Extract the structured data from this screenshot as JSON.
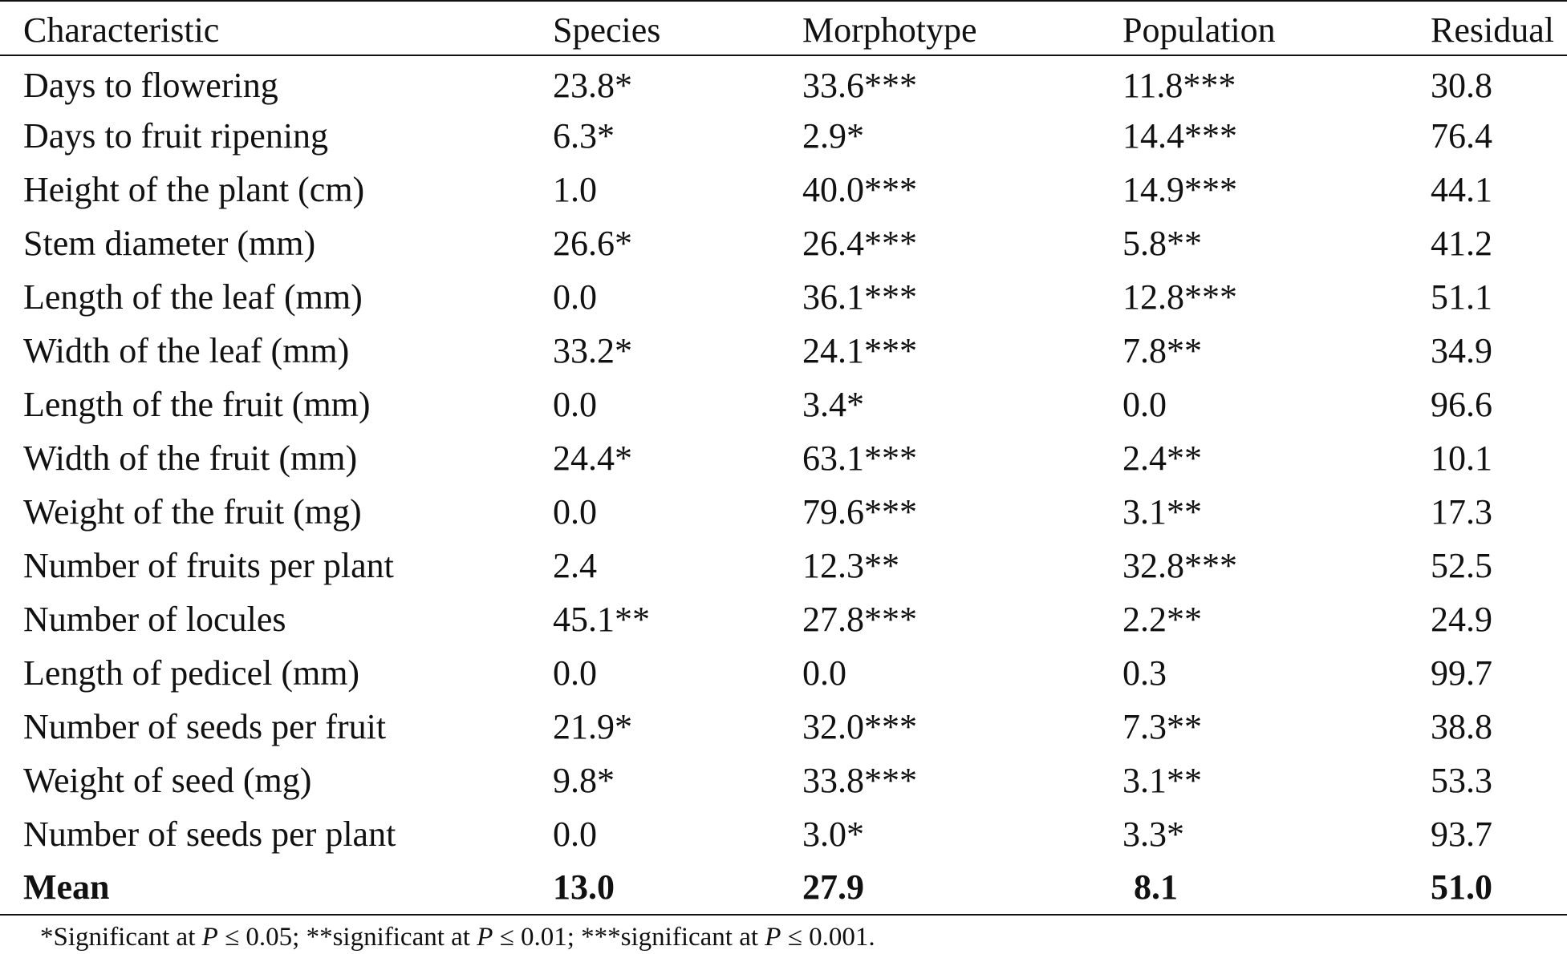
{
  "table": {
    "headers": [
      "Characteristic",
      "Species",
      "Morphotype",
      "Population",
      "Residual"
    ],
    "rows": [
      [
        "Days to flowering",
        "23.8*",
        "33.6***",
        "11.8***",
        "30.8"
      ],
      [
        "Days to fruit ripening",
        "6.3*",
        "2.9*",
        "14.4***",
        "76.4"
      ],
      [
        "Height of the plant (cm)",
        "1.0",
        "40.0***",
        "14.9***",
        "44.1"
      ],
      [
        "Stem diameter (mm)",
        "26.6*",
        "26.4***",
        "5.8**",
        "41.2"
      ],
      [
        "Length of the leaf (mm)",
        "0.0",
        "36.1***",
        "12.8***",
        "51.1"
      ],
      [
        "Width of the leaf (mm)",
        "33.2*",
        "24.1***",
        "7.8**",
        "34.9"
      ],
      [
        "Length of the fruit (mm)",
        "0.0",
        "3.4*",
        "0.0",
        "96.6"
      ],
      [
        "Width of the fruit (mm)",
        "24.4*",
        "63.1***",
        "2.4**",
        "10.1"
      ],
      [
        "Weight of the fruit (mg)",
        "0.0",
        "79.6***",
        "3.1**",
        "17.3"
      ],
      [
        "Number of fruits per plant",
        "2.4",
        "12.3**",
        "32.8***",
        "52.5"
      ],
      [
        "Number of locules",
        "45.1**",
        "27.8***",
        "2.2**",
        "24.9"
      ],
      [
        "Length of pedicel (mm)",
        "0.0",
        "0.0",
        "0.3",
        "99.7"
      ],
      [
        "Number of seeds per fruit",
        "21.9*",
        "32.0***",
        "7.3**",
        "38.8"
      ],
      [
        "Weight of seed (mg)",
        "9.8*",
        "33.8***",
        "3.1**",
        "53.3"
      ],
      [
        "Number of seeds per plant",
        "0.0",
        "3.0*",
        "3.3*",
        "93.7"
      ]
    ],
    "mean_row": [
      "Mean",
      "13.0",
      "27.9",
      "8.1",
      "51.0"
    ]
  },
  "footnote": {
    "part1": "*Significant at ",
    "p1": "P",
    "part2": " ≤ 0.05; **significant at ",
    "p2": "P",
    "part3": " ≤ 0.01; ***significant at ",
    "p3": "P",
    "part4": " ≤ 0.001."
  }
}
